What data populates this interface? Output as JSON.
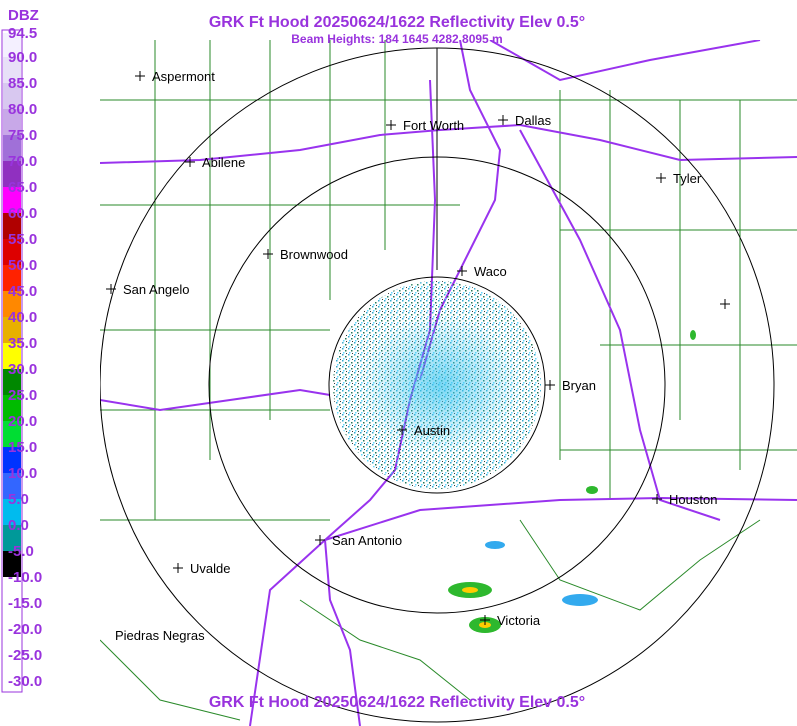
{
  "title": "GRK Ft Hood 20250624/1622 Reflectivity Elev 0.5°",
  "subtitle": "Beam Heights: 184 1645 4282 8095 m",
  "footer_title": "GRK Ft Hood 20250624/1622 Reflectivity Elev 0.5°",
  "legend": {
    "unit": "DBZ",
    "labels": [
      "94.5",
      "90.0",
      "85.0",
      "80.0",
      "75.0",
      "70.0",
      "65.0",
      "60.0",
      "55.0",
      "50.0",
      "45.0",
      "40.0",
      "35.0",
      "30.0",
      "25.0",
      "20.0",
      "15.0",
      "10.0",
      "5.0",
      "0.0",
      "-5.0",
      "-10.0",
      "-15.0",
      "-20.0",
      "-25.0",
      "-30.0"
    ]
  },
  "cities": [
    {
      "label": "Aspermont"
    },
    {
      "label": "Abilene"
    },
    {
      "label": "Fort Worth"
    },
    {
      "label": "Dallas"
    },
    {
      "label": "Tyler"
    },
    {
      "label": "Brownwood"
    },
    {
      "label": "Waco"
    },
    {
      "label": "San Angelo"
    },
    {
      "label": "Bryan"
    },
    {
      "label": "Austin"
    },
    {
      "label": "Houston"
    },
    {
      "label": "San Antonio"
    },
    {
      "label": "Uvalde"
    },
    {
      "label": "Victoria"
    },
    {
      "label": "Piedras Negras"
    }
  ]
}
